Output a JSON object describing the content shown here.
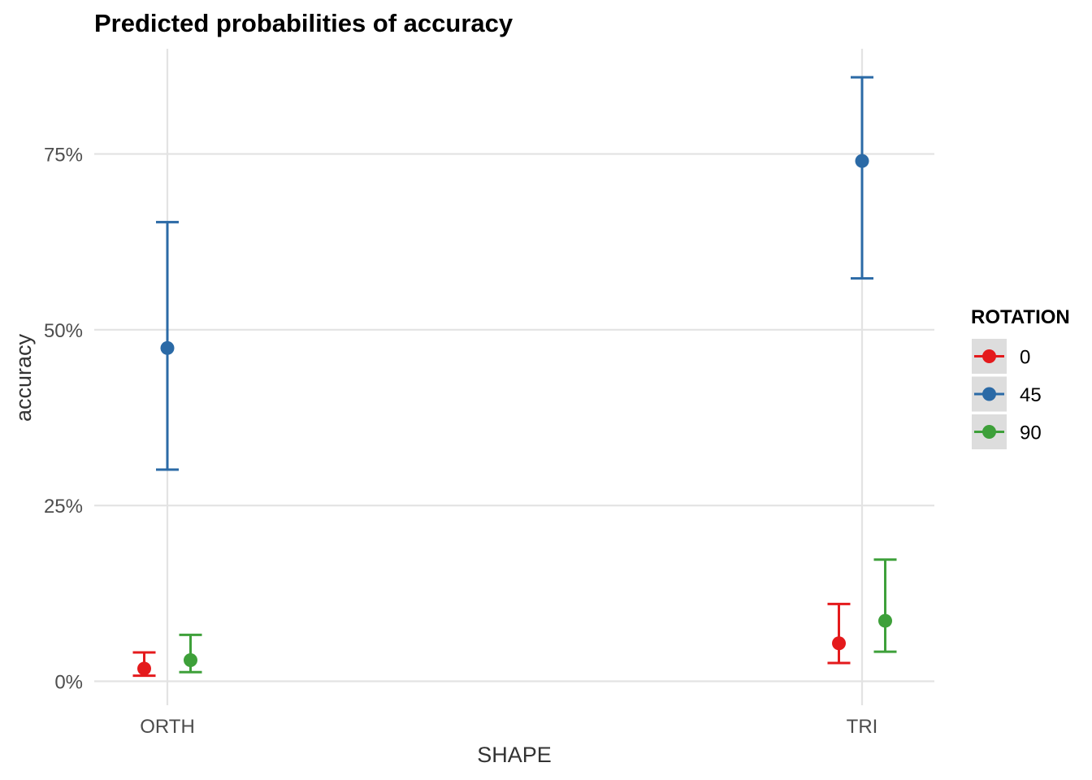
{
  "chart_data": {
    "type": "scatter",
    "title": "Predicted probabilities of accuracy",
    "xlabel": "SHAPE",
    "ylabel": "accuracy",
    "categories": [
      "ORTH",
      "TRI"
    ],
    "y_ticks": [
      {
        "value": 0,
        "label": "0%"
      },
      {
        "value": 25,
        "label": "25%"
      },
      {
        "value": 50,
        "label": "50%"
      },
      {
        "value": 75,
        "label": "75%"
      }
    ],
    "ylim": [
      -3.3,
      90
    ],
    "legend": {
      "title": "ROTATION",
      "position": "right"
    },
    "grid": true,
    "series": [
      {
        "name": "0",
        "color": "#e41a1c",
        "points": [
          {
            "x": "ORTH",
            "y": 1.8,
            "low": 0.8,
            "high": 4.1
          },
          {
            "x": "TRI",
            "y": 5.4,
            "low": 2.6,
            "high": 11.0
          }
        ]
      },
      {
        "name": "45",
        "color": "#2b6aa6",
        "points": [
          {
            "x": "ORTH",
            "y": 47.4,
            "low": 30.1,
            "high": 65.3
          },
          {
            "x": "TRI",
            "y": 74.0,
            "low": 57.3,
            "high": 85.9
          }
        ]
      },
      {
        "name": "90",
        "color": "#3ea03a",
        "points": [
          {
            "x": "ORTH",
            "y": 3.0,
            "low": 1.3,
            "high": 6.6
          },
          {
            "x": "TRI",
            "y": 8.6,
            "low": 4.2,
            "high": 17.3
          }
        ]
      }
    ]
  }
}
